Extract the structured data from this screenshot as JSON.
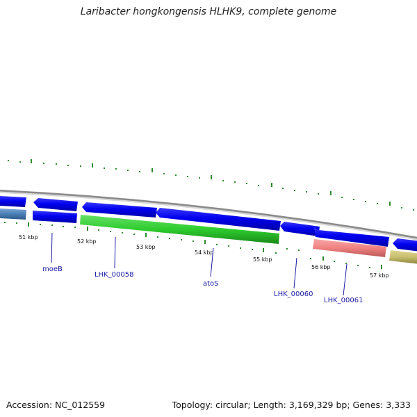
{
  "title": "Laribacter hongkongensis HLHK9, complete genome",
  "footer": {
    "accession": "Accession: NC_012559",
    "info": "Topology: circular; Length: 3,169,329 bp; Genes: 3,333"
  },
  "kbp_labels": [
    "51 kbp",
    "52 kbp",
    "53 kbp",
    "54 kbp",
    "55 kbp",
    "56 kbp",
    "57 kbp"
  ],
  "gene_labels": [
    "moeB",
    "LHK_00058",
    "atoS",
    "LHK_00060",
    "LHK_00061"
  ],
  "colors": {
    "backbone": "#8a8a8a",
    "tick_green": "#2e8b2e",
    "gene_blue": "#0000ee",
    "gene_green": "#2ecc2e",
    "gene_pink": "#f08080",
    "gene_olive": "#c8be6e",
    "gene_steel": "#4a7fb5",
    "label_blue": "#1a1aa6"
  }
}
